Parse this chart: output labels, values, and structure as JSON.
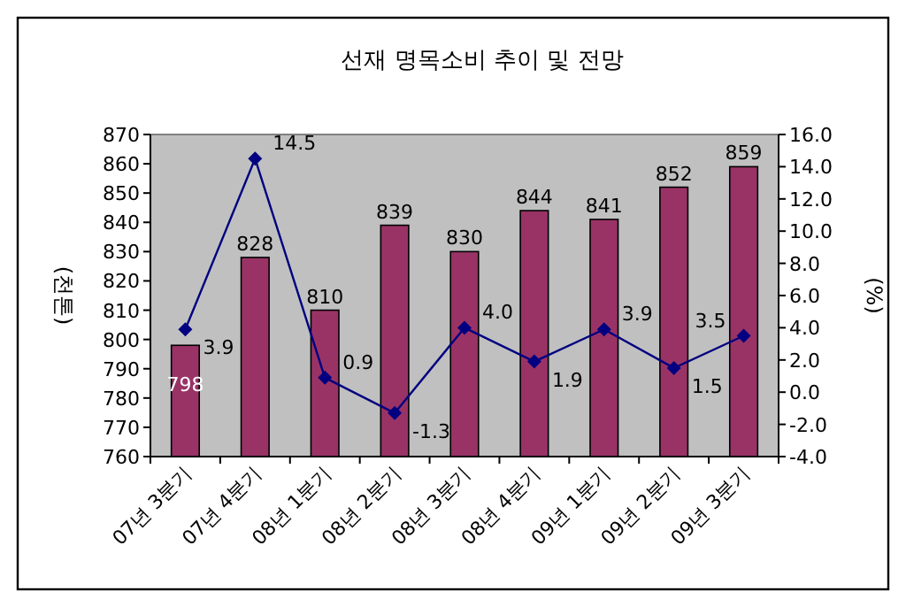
{
  "chart_data": {
    "type": "bar",
    "title": "선재 명목소비 추이 및 전망",
    "ylabel": "(천톤)",
    "y2label": "(%)",
    "categories": [
      "07년 3분기",
      "07년 4분기",
      "08년 1분기",
      "08년 2분기",
      "08년 3분기",
      "08년 4분기",
      "09년 1분기",
      "09년 2분기",
      "09년 3분기"
    ],
    "series": [
      {
        "color": "#993366",
        "values": [
          798,
          828,
          810,
          839,
          830,
          844,
          841,
          852,
          859
        ]
      },
      {
        "type": "line",
        "axis": "y2",
        "color": "#000080",
        "marker": "diamond",
        "values": [
          3.9,
          14.5,
          0.9,
          -1.3,
          4.0,
          1.9,
          3.9,
          1.5,
          3.5
        ],
        "value_labels": [
          "3.9",
          "14.5",
          "0.9",
          "-1.3",
          "4.0",
          "1.9",
          "3.9",
          "1.5",
          "3.5"
        ]
      }
    ],
    "ylim": [
      760,
      870
    ],
    "yticks": [
      760,
      770,
      780,
      790,
      800,
      810,
      820,
      830,
      840,
      850,
      860,
      870
    ],
    "y2lim": [
      -4,
      16
    ],
    "y2ticks": [
      {
        "value": -4,
        "label": "-4.0"
      },
      {
        "value": -2,
        "label": "-2.0"
      },
      {
        "value": 0,
        "label": "0.0"
      },
      {
        "value": 2,
        "label": "2.0"
      },
      {
        "value": 4,
        "label": "4.0"
      },
      {
        "value": 6,
        "label": "6.0"
      },
      {
        "value": 8,
        "label": "8.0"
      },
      {
        "value": 10,
        "label": "10.0"
      },
      {
        "value": 12,
        "label": "12.0"
      },
      {
        "value": 14,
        "label": "14.0"
      },
      {
        "value": 16,
        "label": "16.0"
      }
    ],
    "data_labels": true,
    "grid": false
  }
}
